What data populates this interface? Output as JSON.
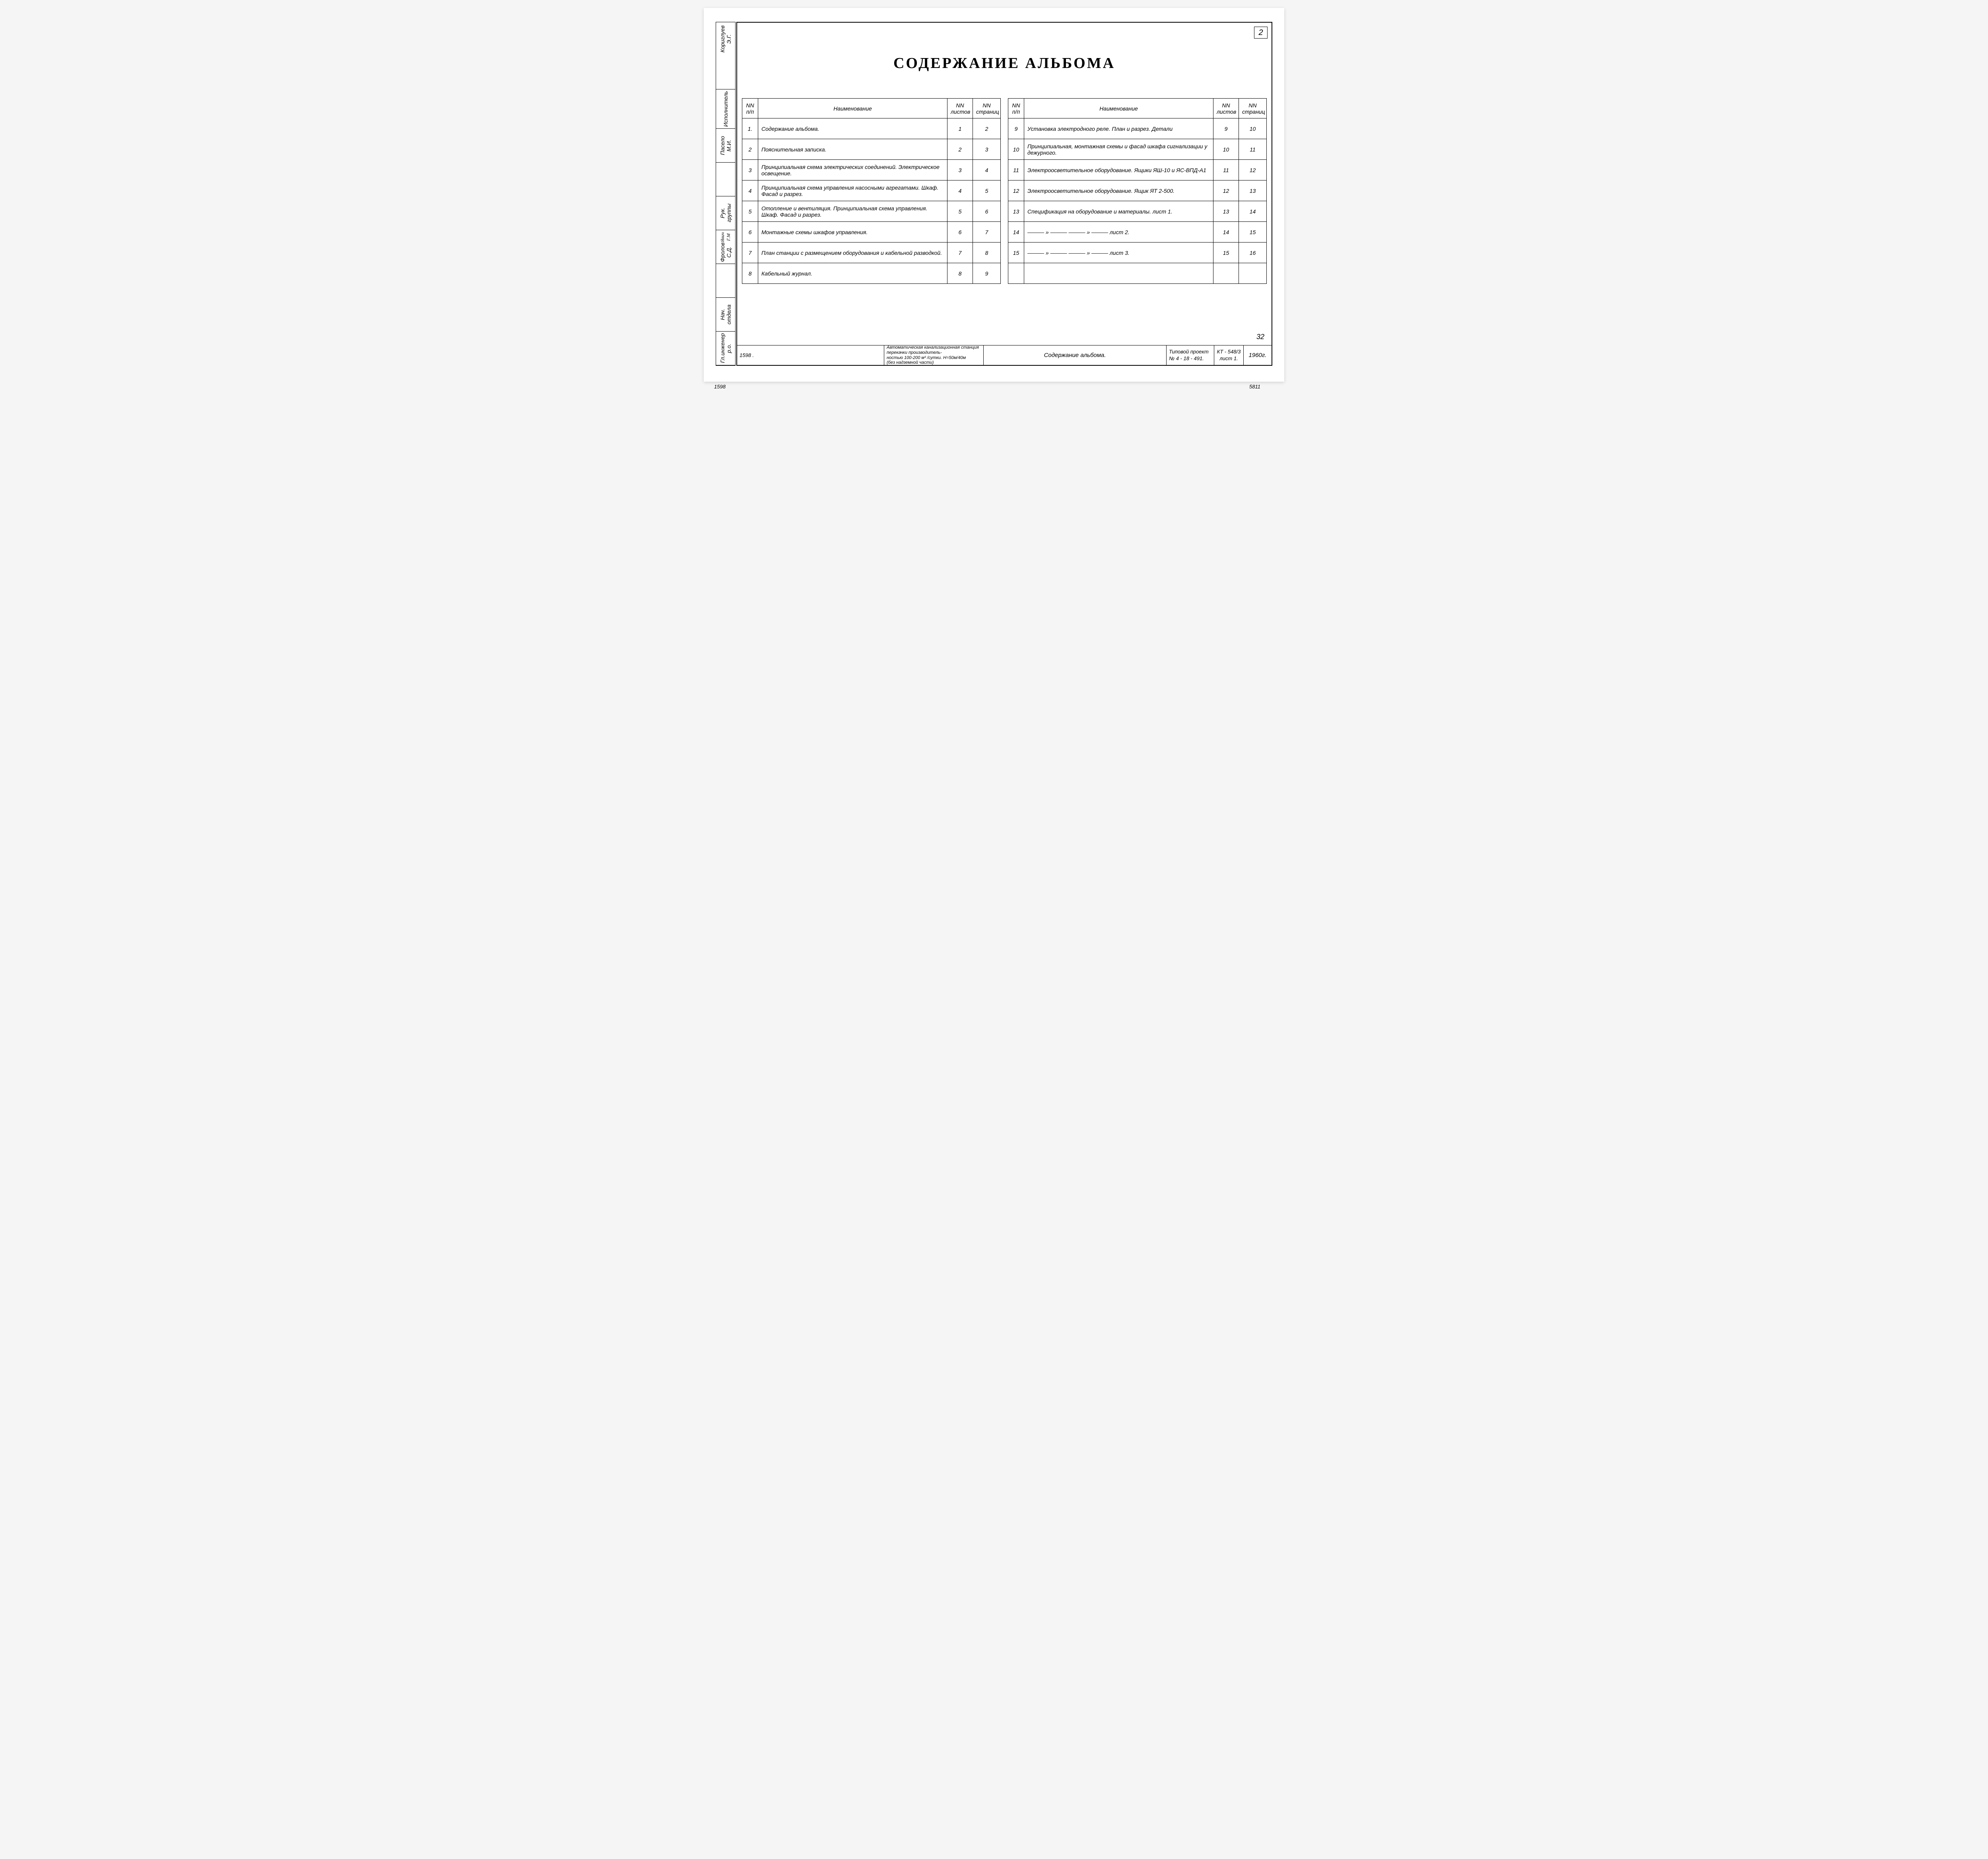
{
  "page_number": "2",
  "title": "СОДЕРЖАНИЕ АЛЬБОМА",
  "bottom_total": "32",
  "colors": {
    "paper": "#ffffff",
    "ink": "#000000",
    "bg": "#f5f5f5"
  },
  "side_stamp": [
    {
      "role": "Гл.инженер р.о.",
      "name": ""
    },
    {
      "role": "Нач. отдела",
      "name": ""
    },
    {
      "role": "",
      "name": ""
    },
    {
      "role": "Фролов С.Д.",
      "name": "Явич Г.М"
    },
    {
      "role": "Рук. группы",
      "name": ""
    },
    {
      "role": "",
      "name": ""
    },
    {
      "role": "Пасело М.И.",
      "name": ""
    },
    {
      "role": "Исполнитель",
      "name": ""
    },
    {
      "role": "",
      "name": ""
    },
    {
      "role": "Кориглуев Э.Г.",
      "name": ""
    }
  ],
  "headers": {
    "nn": "NN\nп/п",
    "name": "Наименование",
    "sheets": "NN\nлистов",
    "pages": "NN\nстраниц"
  },
  "rows_left": [
    {
      "n": "1.",
      "name": "Содержание альбома.",
      "sheets": "1",
      "pages": "2"
    },
    {
      "n": "2",
      "name": "Пояснительная записка.",
      "sheets": "2",
      "pages": "3"
    },
    {
      "n": "3",
      "name": "Принципиальная схема электрических соединений. Электрическое освещение.",
      "sheets": "3",
      "pages": "4"
    },
    {
      "n": "4",
      "name": "Принципиальная схема управления насосными агрегатами. Шкаф. Фасад и разрез.",
      "sheets": "4",
      "pages": "5"
    },
    {
      "n": "5",
      "name": "Отопление и вентиляция. Принципиальная схема управления. Шкаф. Фасад и разрез.",
      "sheets": "5",
      "pages": "6"
    },
    {
      "n": "6",
      "name": "Монтажные схемы шкафов управления.",
      "sheets": "6",
      "pages": "7"
    },
    {
      "n": "7",
      "name": "План станции с размещением оборудования и кабельной разводкой.",
      "sheets": "7",
      "pages": "8"
    },
    {
      "n": "8",
      "name": "Кабельный журнал.",
      "sheets": "8",
      "pages": "9"
    }
  ],
  "rows_right": [
    {
      "n": "9",
      "name": "Установка электродного реле. План и разрез. Детали",
      "sheets": "9",
      "pages": "10"
    },
    {
      "n": "10",
      "name": "Принципиальная, монтажная схемы и фасад шкафа сигнализации у дежурного.",
      "sheets": "10",
      "pages": "11"
    },
    {
      "n": "11",
      "name": "Электроосветительное оборудование. Ящики ЯШ-10 и ЯС-ВПД-А1",
      "sheets": "11",
      "pages": "12"
    },
    {
      "n": "12",
      "name": "Электроосветительное оборудование. Ящик ЯТ 2-500.",
      "sheets": "12",
      "pages": "13"
    },
    {
      "n": "13",
      "name": "Спецификация на оборудование и материалы. лист 1.",
      "sheets": "13",
      "pages": "14"
    },
    {
      "n": "14",
      "name": "——— » ——— ——— » ——— лист 2.",
      "sheets": "14",
      "pages": "15"
    },
    {
      "n": "15",
      "name": "——— » ——— ——— » ——— лист 3.",
      "sheets": "15",
      "pages": "16"
    },
    {
      "n": "",
      "name": "",
      "sheets": "",
      "pages": ""
    }
  ],
  "title_block": {
    "left_note": "1598 .",
    "description": "Автоматическая канализационная станция перекачки производитель-\nностью 100-200 м³ /сутки. Н=50м/40м\n(без надземной части)",
    "mid": "Содержание альбома.",
    "project_label": "Типовой проект",
    "project_no": "№ 4 - 18 - 491.",
    "code1": "КТ - 548/3",
    "code2": "лист 1.",
    "year": "1960г."
  },
  "inv_number": "1598",
  "archive_number": "5811"
}
